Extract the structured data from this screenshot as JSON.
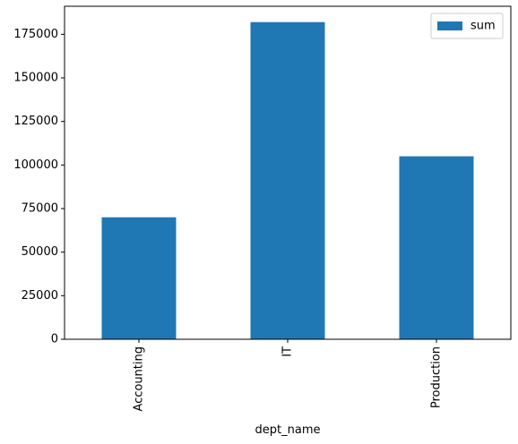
{
  "chart_data": {
    "type": "bar",
    "title": "",
    "xlabel": "dept_name",
    "ylabel": "",
    "categories": [
      "Accounting",
      "IT",
      "Production"
    ],
    "series": [
      {
        "name": "sum",
        "values": [
          70000,
          182000,
          105000
        ],
        "color": "#1f77b4"
      }
    ],
    "ylim": [
      0,
      191100
    ],
    "yticks": [
      0,
      25000,
      50000,
      75000,
      100000,
      125000,
      150000,
      175000
    ],
    "ytick_labels": [
      "0",
      "25000",
      "50000",
      "75000",
      "100000",
      "125000",
      "150000",
      "175000"
    ],
    "grid": false,
    "legend": "upper right"
  }
}
